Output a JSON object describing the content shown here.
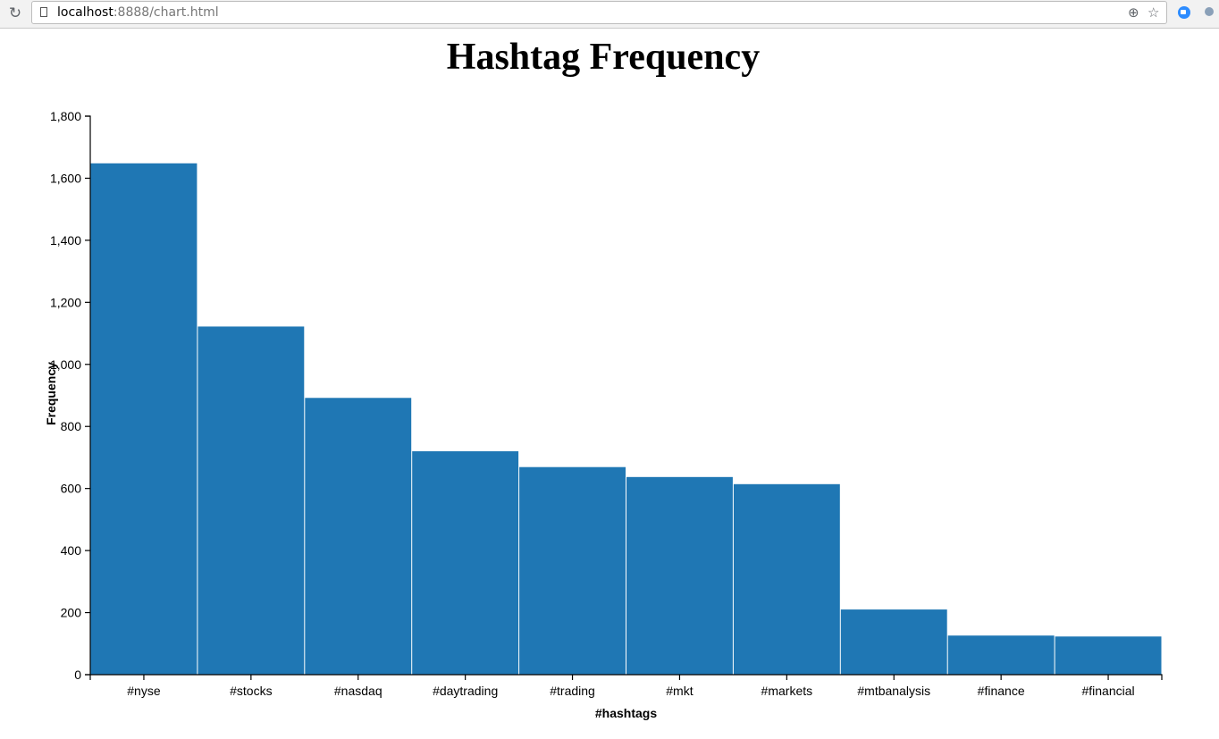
{
  "browser": {
    "url_host": "localhost",
    "url_rest": ":8888/chart.html",
    "icons": [
      "reload-icon",
      "page-icon",
      "zoom-icon",
      "star-icon",
      "zoom-extension-icon",
      "extension-icon"
    ]
  },
  "chart_data": {
    "type": "bar",
    "title": "Hashtag Frequency",
    "xlabel": "#hashtags",
    "ylabel": "Frequency",
    "categories": [
      "#nyse",
      "#stocks",
      "#nasdaq",
      "#daytrading",
      "#trading",
      "#mkt",
      "#markets",
      "#mtbanalysis",
      "#finance",
      "#financial"
    ],
    "values": [
      1648,
      1122,
      892,
      720,
      669,
      637,
      614,
      210,
      126,
      123
    ],
    "ylim": [
      0,
      1800
    ],
    "yticks": [
      0,
      200,
      400,
      600,
      800,
      1000,
      1200,
      1400,
      1600,
      1800
    ],
    "ytick_labels": [
      "0",
      "200",
      "400",
      "600",
      "800",
      "1,000",
      "1,200",
      "1,400",
      "1,600",
      "1,800"
    ],
    "bar_color": "#1f77b4",
    "grid": false,
    "legend": "none"
  }
}
